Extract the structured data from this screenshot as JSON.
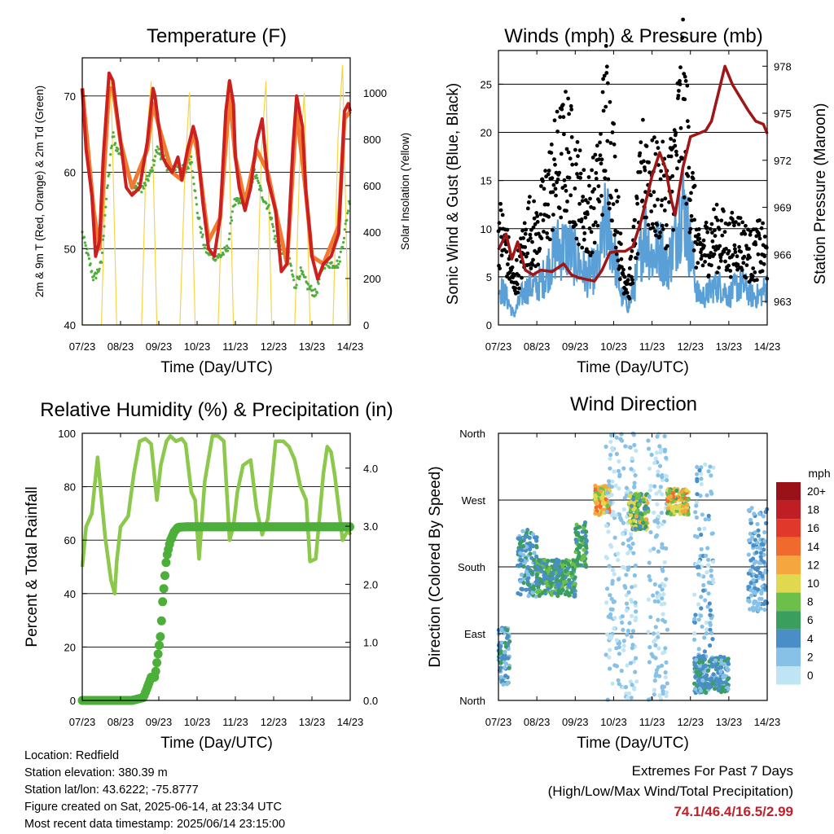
{
  "x_ticks": [
    "07/23",
    "08/23",
    "09/23",
    "10/23",
    "11/23",
    "12/23",
    "13/23",
    "14/23"
  ],
  "colors": {
    "temp2m": "#cc2020",
    "temp9m": "#f07a30",
    "dewpoint": "#4fae3c",
    "solar": "#f5d44a",
    "wind": "#5a9fd6",
    "gust": "#000000",
    "pressure": "#a01515",
    "rh": "#8cc84b",
    "rain": "#4caf3a",
    "extremes": "#c0202a"
  },
  "panels": {
    "temperature": {
      "title": "Temperature (F)",
      "xlabel": "Time (Day/UTC)",
      "ylabel_left": "2m & 9m T (Red, Orange) & 2m Td (Green)",
      "ylabel_right": "Solar Insolation (Yellow)",
      "left_ticks": [
        "40",
        "50",
        "60",
        "70"
      ],
      "right_ticks": [
        "0",
        "200",
        "400",
        "600",
        "800",
        "1000"
      ]
    },
    "winds": {
      "title": "Winds (mph) & Pressure (mb)",
      "xlabel": "Time (Day/UTC)",
      "ylabel_left": "Sonic Wind & Gust (Blue, Black)",
      "ylabel_right": "Station Pressure (Maroon)",
      "left_ticks": [
        "0",
        "5",
        "10",
        "15",
        "20",
        "25"
      ],
      "right_ticks": [
        "963",
        "966",
        "969",
        "972",
        "975",
        "978"
      ]
    },
    "humidity": {
      "title": "Relative Humidity (%) & Precipitation (in)",
      "xlabel": "Time (Day/UTC)",
      "ylabel_left": "Percent & Total Rainfall",
      "left_ticks": [
        "0",
        "20",
        "40",
        "60",
        "80",
        "100"
      ],
      "right_ticks": [
        "0.0",
        "1.0",
        "2.0",
        "3.0",
        "4.0"
      ]
    },
    "direction": {
      "title": "Wind Direction",
      "xlabel": "Time (Day/UTC)",
      "ylabel_left": "Direction (Colored By Speed)",
      "left_ticks": [
        "North",
        "East",
        "South",
        "West",
        "North"
      ],
      "colorbar": {
        "title": "mph",
        "labels": [
          "0",
          "2",
          "4",
          "6",
          "8",
          "10",
          "12",
          "14",
          "16",
          "18",
          "20+"
        ],
        "colors": [
          "#bfe5f5",
          "#88c1e8",
          "#4a8ec8",
          "#3a9e5e",
          "#6cc04a",
          "#e0d84e",
          "#f5a63e",
          "#f06a2e",
          "#e0382a",
          "#c01e25",
          "#9a1218"
        ]
      }
    }
  },
  "chart_data": [
    {
      "type": "line",
      "title": "Temperature (F)",
      "xlabel": "Time (Day/UTC)",
      "ylabel": "2m & 9m T (Red, Orange) & 2m Td (Green)",
      "y2label": "Solar Insolation (Yellow)",
      "ylim": [
        40,
        75
      ],
      "y2lim": [
        0,
        1150
      ],
      "xlim": [
        7,
        14
      ],
      "series": [
        {
          "name": "2m T",
          "axis": "left",
          "x": [
            7.0,
            7.1,
            7.25,
            7.35,
            7.45,
            7.55,
            7.7,
            7.8,
            7.9,
            8.0,
            8.15,
            8.3,
            8.5,
            8.7,
            8.85,
            8.9,
            9.0,
            9.1,
            9.2,
            9.35,
            9.5,
            9.6,
            9.75,
            9.9,
            10.0,
            10.15,
            10.3,
            10.45,
            10.6,
            10.75,
            10.85,
            10.95,
            11.0,
            11.1,
            11.25,
            11.4,
            11.55,
            11.7,
            11.85,
            11.95,
            12.05,
            12.2,
            12.35,
            12.5,
            12.6,
            12.75,
            12.85,
            12.95,
            13.0,
            13.15,
            13.3,
            13.5,
            13.7,
            13.85,
            13.95,
            14.0
          ],
          "y": [
            71,
            63,
            57,
            49,
            51,
            62,
            73,
            72,
            68,
            64,
            58,
            57,
            58,
            64,
            71,
            70,
            66,
            62,
            61,
            60,
            62,
            59,
            63,
            66,
            64,
            56,
            50,
            49,
            54,
            68,
            72,
            69,
            62,
            58,
            55,
            58,
            64,
            67,
            59,
            57,
            55,
            47,
            48,
            63,
            70,
            66,
            57,
            52,
            49,
            46,
            48,
            49,
            52,
            68,
            69,
            68
          ]
        },
        {
          "name": "9m T",
          "axis": "left",
          "x": [
            7.0,
            7.3,
            7.45,
            7.7,
            7.8,
            8.0,
            8.3,
            8.7,
            8.85,
            9.0,
            9.35,
            9.6,
            9.9,
            10.0,
            10.3,
            10.6,
            10.85,
            11.0,
            11.25,
            11.55,
            11.85,
            12.05,
            12.35,
            12.6,
            12.85,
            13.0,
            13.3,
            13.7,
            13.85,
            14.0
          ],
          "y": [
            71,
            55,
            50,
            71,
            71,
            64,
            58,
            63,
            69,
            66,
            60,
            59,
            65,
            63,
            51,
            54,
            70,
            62,
            56,
            63,
            60,
            55,
            48,
            68,
            57,
            49,
            48,
            53,
            67,
            68
          ]
        },
        {
          "name": "2m Td",
          "axis": "left",
          "x": [
            7.0,
            7.15,
            7.3,
            7.5,
            7.6,
            7.8,
            7.9,
            8.1,
            8.3,
            8.6,
            8.8,
            8.95,
            9.1,
            9.3,
            9.5,
            9.7,
            9.85,
            10.0,
            10.2,
            10.4,
            10.6,
            10.8,
            10.95,
            11.1,
            11.3,
            11.5,
            11.7,
            11.9,
            12.05,
            12.2,
            12.4,
            12.55,
            12.7,
            12.9,
            13.1,
            13.3,
            13.5,
            13.7,
            13.85,
            14.0
          ],
          "y": [
            52,
            49,
            46,
            48,
            55,
            65,
            63,
            62,
            58,
            58,
            60,
            63,
            62,
            60,
            61,
            60,
            62,
            55,
            50,
            49,
            49,
            50,
            56,
            56,
            57,
            60,
            57,
            55,
            51,
            50,
            49,
            45,
            47,
            45,
            44,
            48,
            48,
            48,
            52,
            57
          ]
        },
        {
          "name": "Solar Insolation",
          "axis": "right",
          "x": [
            7.0,
            7.25,
            7.5,
            7.62,
            7.75,
            7.9,
            8.25,
            8.55,
            8.68,
            8.8,
            8.95,
            9.3,
            9.55,
            9.68,
            9.8,
            9.95,
            10.3,
            10.55,
            10.68,
            10.8,
            10.95,
            11.3,
            11.55,
            11.68,
            11.8,
            11.95,
            12.3,
            12.55,
            12.68,
            12.8,
            12.95,
            13.3,
            13.55,
            13.68,
            13.8,
            13.95,
            14.0
          ],
          "y": [
            0,
            0,
            0,
            700,
            1050,
            0,
            0,
            0,
            800,
            1050,
            0,
            0,
            0,
            650,
            1000,
            0,
            0,
            0,
            700,
            1050,
            0,
            0,
            0,
            750,
            1050,
            0,
            0,
            0,
            700,
            1000,
            0,
            0,
            0,
            800,
            1120,
            0,
            0
          ]
        }
      ]
    },
    {
      "type": "line",
      "title": "Winds (mph) & Pressure (mb)",
      "xlabel": "Time (Day/UTC)",
      "ylabel": "Sonic Wind & Gust (Blue, Black)",
      "y2label": "Station Pressure (Maroon)",
      "ylim": [
        0,
        28.5
      ],
      "y2lim": [
        961.5,
        979
      ],
      "xlim": [
        7,
        14
      ],
      "series": [
        {
          "name": "Sonic Wind",
          "axis": "left",
          "x": [
            7.0,
            7.2,
            7.4,
            7.6,
            7.8,
            8.0,
            8.2,
            8.5,
            8.8,
            9.0,
            9.3,
            9.6,
            9.8,
            10.0,
            10.2,
            10.4,
            10.6,
            10.8,
            11.0,
            11.2,
            11.4,
            11.6,
            11.8,
            12.0,
            12.2,
            12.4,
            12.6,
            12.8,
            13.0,
            13.2,
            13.4,
            13.6,
            13.8,
            14.0
          ],
          "y": [
            4,
            3,
            1,
            3,
            4,
            4,
            5,
            8,
            8,
            7,
            5,
            6,
            11,
            8,
            3,
            2,
            5,
            10,
            7,
            8,
            6,
            9,
            13,
            8,
            3,
            3,
            4,
            4,
            3,
            4,
            4,
            3,
            3,
            4
          ]
        },
        {
          "name": "Gust",
          "axis": "left",
          "x": [
            7.0,
            7.2,
            7.4,
            7.6,
            7.8,
            8.0,
            8.2,
            8.5,
            8.8,
            9.0,
            9.3,
            9.6,
            9.8,
            10.0,
            10.2,
            10.4,
            10.6,
            10.8,
            11.0,
            11.2,
            11.4,
            11.6,
            11.8,
            12.0,
            12.2,
            12.4,
            12.6,
            12.8,
            13.0,
            13.2,
            13.4,
            13.6,
            13.8,
            14.0
          ],
          "y": [
            10,
            8,
            4,
            7,
            10,
            9,
            12,
            16,
            18,
            15,
            11,
            14,
            22,
            16,
            6,
            4,
            10,
            17,
            14,
            14,
            13,
            17,
            23,
            15,
            7,
            8,
            9,
            9,
            8,
            9,
            8,
            7,
            8,
            7
          ]
        },
        {
          "name": "Station Pressure",
          "axis": "right",
          "x": [
            7.0,
            7.2,
            7.35,
            7.5,
            7.7,
            7.9,
            8.1,
            8.4,
            8.7,
            8.9,
            9.1,
            9.3,
            9.5,
            9.7,
            9.9,
            10.1,
            10.3,
            10.5,
            10.7,
            10.9,
            11.0,
            11.2,
            11.35,
            11.5,
            11.6,
            11.8,
            12.0,
            12.2,
            12.4,
            12.55,
            12.7,
            12.9,
            13.1,
            13.3,
            13.5,
            13.7,
            13.9,
            14.0
          ],
          "y": [
            966.3,
            967.3,
            965.7,
            966.8,
            965.0,
            964.7,
            965.0,
            964.9,
            965.4,
            964.7,
            964.5,
            964.4,
            964.3,
            965.0,
            966.1,
            966.2,
            966.2,
            966.5,
            968.0,
            970.0,
            971.0,
            972.5,
            971.5,
            969.5,
            968.5,
            971.5,
            973.5,
            973.7,
            973.9,
            974.5,
            976.0,
            978.0,
            976.8,
            976.0,
            975.2,
            974.5,
            974.3,
            973.7
          ]
        }
      ]
    },
    {
      "type": "line",
      "title": "Relative Humidity (%) & Precipitation (in)",
      "xlabel": "Time (Day/UTC)",
      "ylabel": "Percent & Total Rainfall",
      "ylim": [
        0,
        100
      ],
      "y2lim": [
        0,
        4.6
      ],
      "xlim": [
        7,
        14
      ],
      "series": [
        {
          "name": "Relative Humidity",
          "axis": "left",
          "x": [
            7.0,
            7.1,
            7.25,
            7.4,
            7.5,
            7.6,
            7.75,
            7.85,
            7.9,
            8.0,
            8.2,
            8.35,
            8.5,
            8.65,
            8.8,
            8.95,
            9.05,
            9.2,
            9.3,
            9.45,
            9.6,
            9.7,
            9.85,
            9.95,
            10.05,
            10.2,
            10.4,
            10.55,
            10.7,
            10.85,
            10.95,
            11.05,
            11.2,
            11.4,
            11.55,
            11.7,
            11.85,
            11.95,
            12.05,
            12.25,
            12.4,
            12.55,
            12.7,
            12.85,
            12.95,
            13.1,
            13.3,
            13.4,
            13.5,
            13.6,
            13.8,
            13.95,
            14.0
          ],
          "y": [
            50,
            65,
            70,
            91,
            76,
            61,
            45,
            40,
            52,
            65,
            69,
            85,
            97,
            98,
            96,
            75,
            88,
            97,
            99,
            97,
            98,
            96,
            78,
            75,
            53,
            82,
            99,
            99,
            97,
            60,
            65,
            78,
            88,
            90,
            72,
            62,
            68,
            82,
            97,
            97,
            95,
            90,
            80,
            75,
            52,
            53,
            85,
            95,
            93,
            84,
            60,
            64,
            62
          ]
        },
        {
          "name": "Total Precipitation",
          "axis": "right",
          "x": [
            7.0,
            7.5,
            8.0,
            8.3,
            8.6,
            8.8,
            8.9,
            9.0,
            9.05,
            9.1,
            9.2,
            9.3,
            9.4,
            9.5,
            9.7,
            10.0,
            11.0,
            12.0,
            13.0,
            14.0
          ],
          "y": [
            0,
            0,
            0,
            0,
            0.05,
            0.4,
            0.4,
            0.9,
            1.15,
            1.7,
            2.45,
            2.75,
            2.9,
            2.98,
            2.99,
            2.99,
            2.99,
            2.99,
            2.99,
            2.99
          ]
        }
      ]
    },
    {
      "type": "scatter",
      "title": "Wind Direction",
      "xlabel": "Time (Day/UTC)",
      "ylabel": "Direction (Colored By Speed)",
      "colorbar_label": "mph",
      "xlim": [
        7,
        14
      ],
      "ylim": [
        0,
        360
      ],
      "ytick_labels": [
        "North",
        "East",
        "South",
        "West",
        "North"
      ],
      "clusters": [
        {
          "x": [
            7.0,
            7.3
          ],
          "dir": [
            20,
            100
          ],
          "speed": [
            1,
            6
          ]
        },
        {
          "x": [
            7.5,
            8.0
          ],
          "dir": [
            140,
            230
          ],
          "speed": [
            2,
            6
          ]
        },
        {
          "x": [
            8.0,
            9.0
          ],
          "dir": [
            140,
            190
          ],
          "speed": [
            3,
            8
          ]
        },
        {
          "x": [
            9.0,
            9.3
          ],
          "dir": [
            180,
            240
          ],
          "speed": [
            4,
            8
          ]
        },
        {
          "x": [
            9.5,
            9.9
          ],
          "dir": [
            250,
            290
          ],
          "speed": [
            8,
            14
          ]
        },
        {
          "x": [
            9.8,
            10.6
          ],
          "dir": [
            0,
            360
          ],
          "speed": [
            0,
            3
          ]
        },
        {
          "x": [
            10.4,
            10.9
          ],
          "dir": [
            230,
            280
          ],
          "speed": [
            4,
            12
          ]
        },
        {
          "x": [
            10.9,
            11.4
          ],
          "dir": [
            0,
            360
          ],
          "speed": [
            0,
            3
          ]
        },
        {
          "x": [
            11.4,
            11.95
          ],
          "dir": [
            250,
            285
          ],
          "speed": [
            6,
            14
          ]
        },
        {
          "x": [
            12.1,
            12.6
          ],
          "dir": [
            10,
            320
          ],
          "speed": [
            0,
            4
          ]
        },
        {
          "x": [
            12.1,
            13.0
          ],
          "dir": [
            10,
            60
          ],
          "speed": [
            2,
            6
          ]
        },
        {
          "x": [
            13.5,
            14.0
          ],
          "dir": [
            120,
            260
          ],
          "speed": [
            2,
            4
          ]
        }
      ]
    }
  ],
  "footer": {
    "location": "Location: Redfield",
    "elevation": "Station elevation: 380.39 m",
    "latlon": "Station lat/lon: 43.6222; -75.8777",
    "created": "Figure created on Sat, 2025-06-14, at 23:34 UTC",
    "recent": "Most recent data timestamp: 2025/06/14 23:15:00"
  },
  "extremes": {
    "line1": "Extremes For Past 7 Days",
    "line2": "(High/Low/Max Wind/Total Precipitation)",
    "values": "74.1/46.4/16.5/2.99"
  }
}
